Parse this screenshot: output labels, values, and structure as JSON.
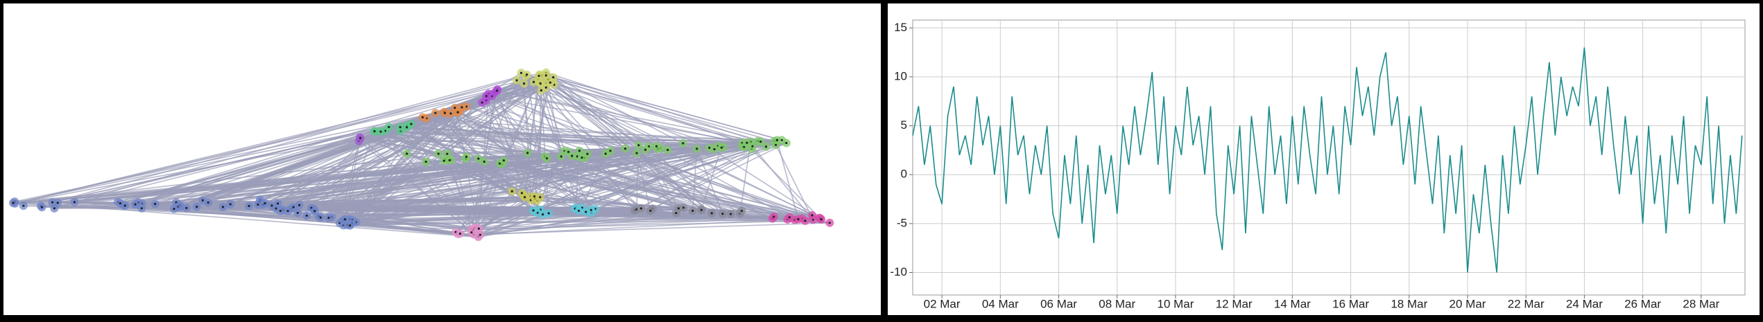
{
  "chart_data": {
    "type": "line",
    "x": [
      1,
      1.2,
      1.4,
      1.6,
      1.8,
      2,
      2.2,
      2.4,
      2.6,
      2.8,
      3,
      3.2,
      3.4,
      3.6,
      3.8,
      4,
      4.2,
      4.4,
      4.6,
      4.8,
      5,
      5.2,
      5.4,
      5.6,
      5.8,
      6,
      6.2,
      6.4,
      6.6,
      6.8,
      7,
      7.2,
      7.4,
      7.6,
      7.8,
      8,
      8.2,
      8.4,
      8.6,
      8.8,
      9,
      9.2,
      9.4,
      9.6,
      9.8,
      10,
      10.2,
      10.4,
      10.6,
      10.8,
      11,
      11.2,
      11.4,
      11.6,
      11.8,
      12,
      12.2,
      12.4,
      12.6,
      12.8,
      13,
      13.2,
      13.4,
      13.6,
      13.8,
      14,
      14.2,
      14.4,
      14.6,
      14.8,
      15,
      15.2,
      15.4,
      15.6,
      15.8,
      16,
      16.2,
      16.4,
      16.6,
      16.8,
      17,
      17.2,
      17.4,
      17.6,
      17.8,
      18,
      18.2,
      18.4,
      18.6,
      18.8,
      19,
      19.2,
      19.4,
      19.6,
      19.8,
      20,
      20.2,
      20.4,
      20.6,
      20.8,
      21,
      21.2,
      21.4,
      21.6,
      21.8,
      22,
      22.2,
      22.4,
      22.6,
      22.8,
      23,
      23.2,
      23.4,
      23.6,
      23.8,
      24,
      24.2,
      24.4,
      24.6,
      24.8,
      25,
      25.2,
      25.4,
      25.6,
      25.8,
      26,
      26.2,
      26.4,
      26.6,
      26.8,
      27,
      27.2,
      27.4,
      27.6,
      27.8,
      28,
      28.2,
      28.4,
      28.6,
      28.8,
      29,
      29.2,
      29.4
    ],
    "series": [
      {
        "color": "#1a8c8c",
        "values": [
          4,
          7,
          1,
          5,
          -1,
          -3,
          6,
          9,
          2,
          4,
          1,
          8,
          3,
          6,
          0,
          5,
          -3,
          8,
          2,
          4,
          -2,
          3,
          0,
          5,
          -4,
          -6.5,
          2,
          -3,
          4,
          -5,
          1,
          -7,
          3,
          -2,
          2,
          -4,
          5,
          1,
          7,
          2,
          6,
          10.5,
          1,
          8,
          -2,
          5,
          2,
          9,
          3,
          6,
          0,
          7,
          -4,
          -7.7,
          3,
          -2,
          5,
          -6,
          6,
          1,
          -4,
          7,
          0,
          4,
          -3,
          6,
          -1,
          7,
          2,
          -2,
          8,
          0,
          5,
          -2,
          7,
          3,
          11,
          6,
          9,
          4,
          10,
          12.5,
          5,
          8,
          1,
          6,
          -1,
          7,
          2,
          -3,
          4,
          -6,
          2,
          -4,
          3,
          -10,
          -2,
          -6,
          1,
          -5,
          -10,
          2,
          -4,
          5,
          -1,
          3,
          8,
          0,
          6,
          11.5,
          4,
          10,
          6,
          9,
          7,
          13,
          5,
          8,
          2,
          9,
          3,
          -2,
          6,
          0,
          4,
          -5,
          5,
          -3,
          2,
          -6,
          4,
          -1,
          6,
          -4,
          3,
          1,
          8,
          -3,
          5,
          -5,
          2,
          -4,
          4
        ]
      }
    ],
    "xlim": [
      1,
      29.5
    ],
    "xticks": [
      {
        "value": 2,
        "label": "02 Mar"
      },
      {
        "value": 4,
        "label": "04 Mar"
      },
      {
        "value": 6,
        "label": "06 Mar"
      },
      {
        "value": 8,
        "label": "08 Mar"
      },
      {
        "value": 10,
        "label": "10 Mar"
      },
      {
        "value": 12,
        "label": "12 Mar"
      },
      {
        "value": 14,
        "label": "14 Mar"
      },
      {
        "value": 16,
        "label": "16 Mar"
      },
      {
        "value": 18,
        "label": "18 Mar"
      },
      {
        "value": 20,
        "label": "20 Mar"
      },
      {
        "value": 22,
        "label": "22 Mar"
      },
      {
        "value": 24,
        "label": "24 Mar"
      },
      {
        "value": 26,
        "label": "26 Mar"
      },
      {
        "value": 28,
        "label": "28 Mar"
      }
    ],
    "ylim": [
      -12.3,
      15.8
    ],
    "yticks": [
      -10,
      -5,
      0,
      5,
      10,
      15
    ],
    "grid": true
  }
}
